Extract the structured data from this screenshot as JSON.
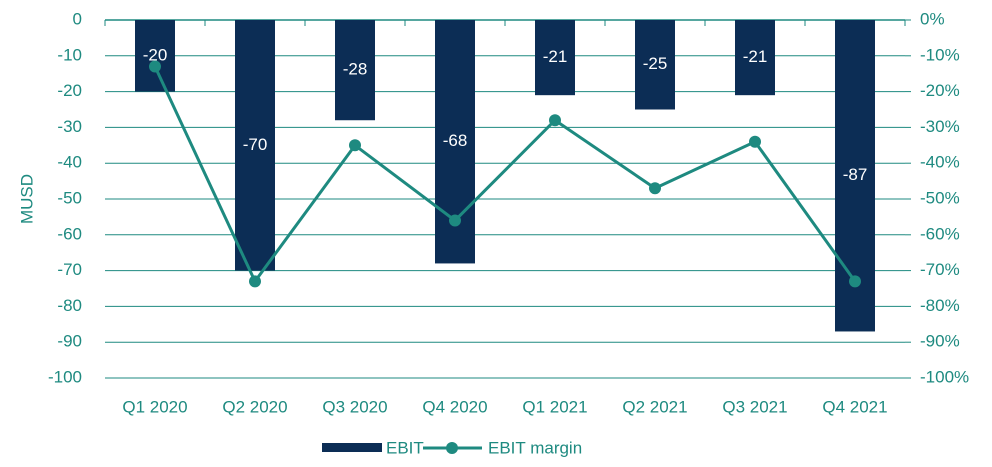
{
  "chart_data": {
    "type": "bar",
    "ylabel": "MUSD",
    "categories": [
      "Q1 2020",
      "Q2 2020",
      "Q3 2020",
      "Q4 2020",
      "Q1 2021",
      "Q2 2021",
      "Q3 2021",
      "Q4 2021"
    ],
    "series": [
      {
        "name": "EBIT",
        "type": "bar",
        "color": "#0c2d55",
        "values": [
          -20,
          -70,
          -28,
          -68,
          -21,
          -25,
          -21,
          -87
        ]
      },
      {
        "name": "EBIT margin",
        "type": "line",
        "axis": "y2",
        "color": "#1e8a80",
        "values": [
          -13,
          -73,
          -35,
          -56,
          -28,
          -47,
          -34,
          -73
        ]
      }
    ],
    "ylim": [
      -100,
      0
    ],
    "yticks": [
      0,
      -10,
      -20,
      -30,
      -40,
      -50,
      -60,
      -70,
      -80,
      -90,
      -100
    ],
    "y2lim": [
      -100,
      0
    ],
    "y2ticks": [
      {
        "value": 0,
        "label": "0%"
      },
      {
        "value": -10,
        "label": "-10%"
      },
      {
        "value": -20,
        "label": "-20%"
      },
      {
        "value": -30,
        "label": "-30%"
      },
      {
        "value": -40,
        "label": "-40%"
      },
      {
        "value": -50,
        "label": "-50%"
      },
      {
        "value": -60,
        "label": "-60%"
      },
      {
        "value": -70,
        "label": "-70%"
      },
      {
        "value": -80,
        "label": "-80%"
      },
      {
        "value": -90,
        "label": "-90%"
      },
      {
        "value": -100,
        "label": "-100%"
      }
    ],
    "grid": true,
    "legend": "bottom"
  }
}
